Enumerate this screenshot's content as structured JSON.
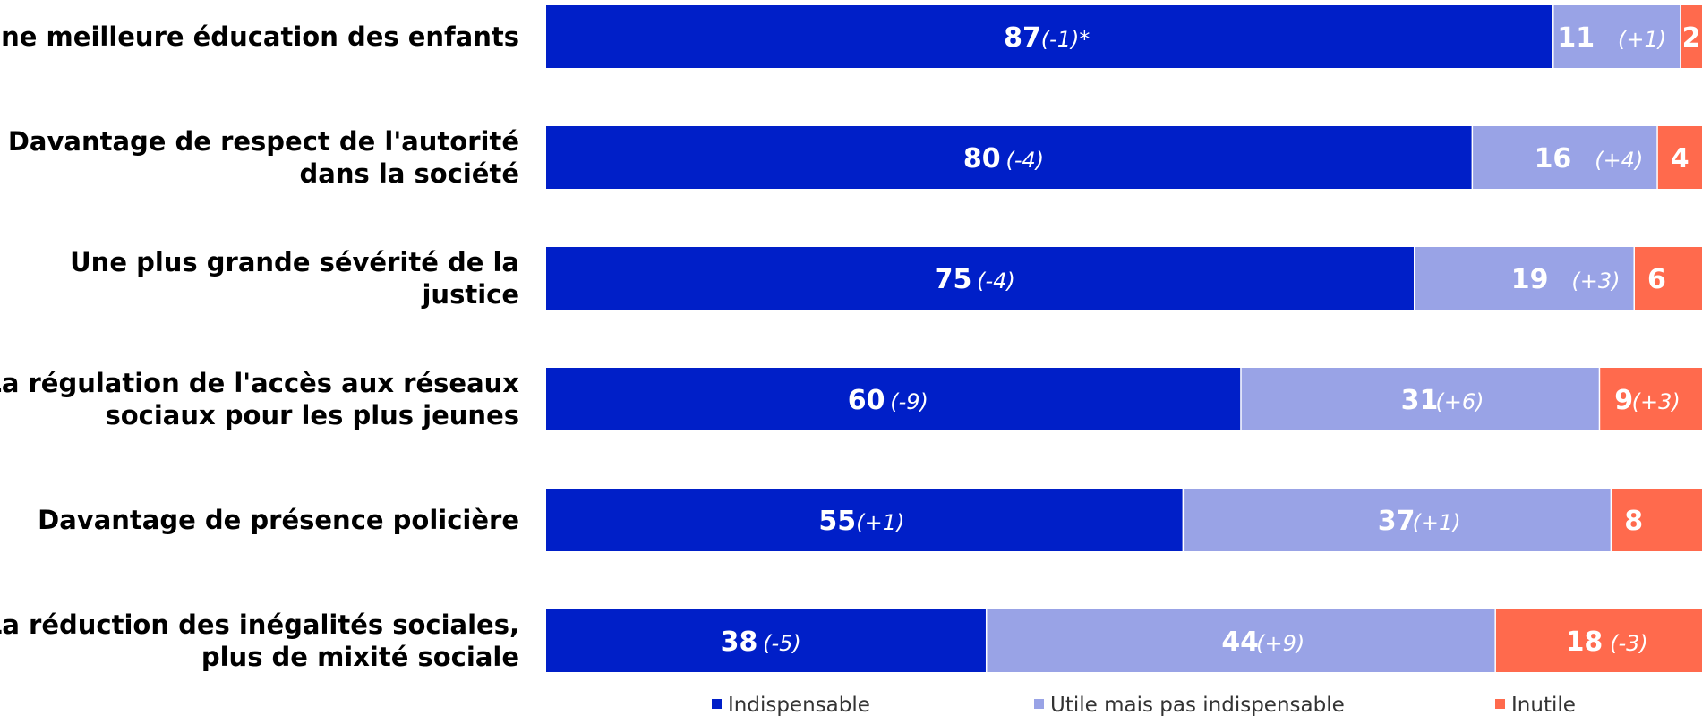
{
  "chart_data": {
    "type": "bar",
    "orientation": "horizontal",
    "stacked": true,
    "categories": [
      [
        "Une meilleure éducation des enfants"
      ],
      [
        "Davantage de respect de l'autorité",
        "dans la société"
      ],
      [
        "Une plus grande sévérité de la",
        "justice"
      ],
      [
        "La régulation de l'accès aux réseaux",
        "sociaux pour les plus jeunes"
      ],
      [
        "Davantage de présence policière"
      ],
      [
        "La réduction des inégalités sociales,",
        "plus de mixité sociale"
      ]
    ],
    "series": [
      {
        "name": "Indispensable",
        "color": "#001fc8",
        "values": [
          87,
          80,
          75,
          60,
          55,
          38
        ],
        "changes": [
          "(-1)*",
          "(-4)",
          "(-4)",
          "(-9)",
          "(+1)",
          "(-5)"
        ]
      },
      {
        "name": "Utile mais pas indispensable",
        "color": "#99a3e6",
        "values": [
          11,
          16,
          19,
          31,
          37,
          44
        ],
        "changes": [
          "(+1)",
          "(+4)",
          "(+3)",
          "(+6)",
          "(+1)",
          "(+9)"
        ]
      },
      {
        "name": "Inutile",
        "color": "#ff6a4d",
        "values": [
          2,
          4,
          6,
          9,
          8,
          18
        ],
        "changes": [
          "",
          "",
          "",
          "(+3)",
          "",
          "(-3)"
        ]
      }
    ],
    "xlim": [
      0,
      100
    ],
    "legend_position": "bottom"
  }
}
